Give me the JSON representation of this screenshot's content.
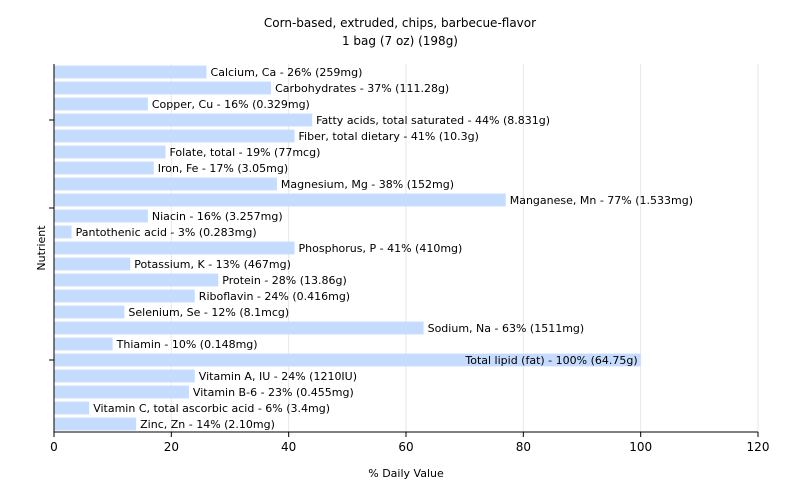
{
  "chart_data": {
    "type": "bar",
    "orientation": "horizontal",
    "title": "Corn-based, extruded, chips, barbecue-flavor",
    "subtitle": "1 bag (7 oz) (198g)",
    "xlabel": "% Daily Value",
    "ylabel": "Nutrient",
    "xlim": [
      0,
      120
    ],
    "xticks": [
      0,
      20,
      40,
      60,
      80,
      100,
      120
    ],
    "grid": true,
    "bar_color": "#c6dcff",
    "categories": [
      "Calcium, Ca",
      "Carbohydrates",
      "Copper, Cu",
      "Fatty acids, total saturated",
      "Fiber, total dietary",
      "Folate, total",
      "Iron, Fe",
      "Magnesium, Mg",
      "Manganese, Mn",
      "Niacin",
      "Pantothenic acid",
      "Phosphorus, P",
      "Potassium, K",
      "Protein",
      "Riboflavin",
      "Selenium, Se",
      "Sodium, Na",
      "Thiamin",
      "Total lipid (fat)",
      "Vitamin A, IU",
      "Vitamin B-6",
      "Vitamin C, total ascorbic acid",
      "Zinc, Zn"
    ],
    "values": [
      26,
      37,
      16,
      44,
      41,
      19,
      17,
      38,
      77,
      16,
      3,
      41,
      13,
      28,
      24,
      12,
      63,
      10,
      100,
      24,
      23,
      6,
      14
    ],
    "labels": [
      "Calcium, Ca - 26% (259mg)",
      "Carbohydrates - 37% (111.28g)",
      "Copper, Cu - 16% (0.329mg)",
      "Fatty acids, total saturated - 44% (8.831g)",
      "Fiber, total dietary - 41% (10.3g)",
      "Folate, total - 19% (77mcg)",
      "Iron, Fe - 17% (3.05mg)",
      "Magnesium, Mg - 38% (152mg)",
      "Manganese, Mn - 77% (1.533mg)",
      "Niacin - 16% (3.257mg)",
      "Pantothenic acid - 3% (0.283mg)",
      "Phosphorus, P - 41% (410mg)",
      "Potassium, K - 13% (467mg)",
      "Protein - 28% (13.86g)",
      "Riboflavin - 24% (0.416mg)",
      "Selenium, Se - 12% (8.1mcg)",
      "Sodium, Na - 63% (1511mg)",
      "Thiamin - 10% (0.148mg)",
      "Total lipid (fat) - 100% (64.75g)",
      "Vitamin A, IU - 24% (1210IU)",
      "Vitamin B-6 - 23% (0.455mg)",
      "Vitamin C, total ascorbic acid - 6% (3.4mg)",
      "Zinc, Zn - 14% (2.10mg)"
    ]
  }
}
